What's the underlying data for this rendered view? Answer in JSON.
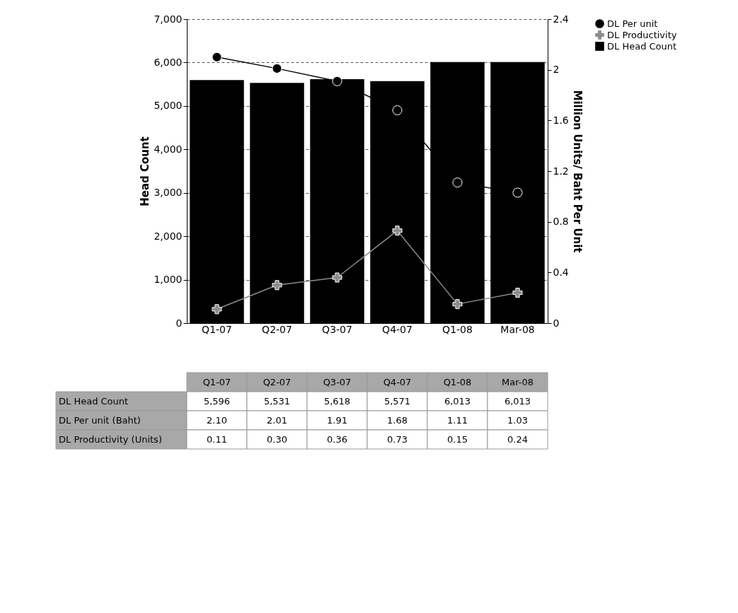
{
  "chart_data": {
    "type": "bar",
    "categories": [
      "Q1-07",
      "Q2-07",
      "Q3-07",
      "Q4-07",
      "Q1-08",
      "Mar-08"
    ],
    "ylabel": "Head Count",
    "y2label": "Million Units/ Baht Per Unit",
    "ylim": [
      0,
      7000
    ],
    "yticks": [
      0,
      {
        "value": 1000,
        "label": "1,000"
      },
      {
        "value": 2000,
        "label": "2,000"
      },
      {
        "value": 3000,
        "label": "3,000"
      },
      {
        "value": 4000,
        "label": "4,000"
      },
      {
        "value": 5000,
        "label": "5,000"
      },
      {
        "value": 6000,
        "label": "6,000"
      },
      {
        "value": 7000,
        "label": "7,000"
      }
    ],
    "y2lim": [
      0,
      2.4
    ],
    "y2ticks": [
      0,
      0.4,
      0.8,
      1.2,
      1.6,
      2,
      2.4
    ],
    "grid": "y",
    "legend": "top right",
    "annotations": [
      "DL Head Count",
      "DL Per unit (Baht)",
      "DL Productivity (Units)"
    ],
    "series": [
      {
        "name": "DL Head Count",
        "color": "#000000",
        "values": [
          5596,
          5531,
          5618,
          5571,
          6013,
          6013
        ],
        "value_labels": [
          "5,596",
          "5,531",
          "5,618",
          "5,571",
          "6,013",
          "6,013"
        ]
      },
      {
        "name": "DL Per unit",
        "type": "line",
        "axis": "y2",
        "color": "#000000",
        "marker": "circle",
        "values": [
          2.1,
          2.01,
          1.91,
          1.68,
          1.11,
          1.03
        ],
        "value_labels": [
          "2.10",
          "2.01",
          "1.91",
          "1.68",
          "1.11",
          "1.03"
        ]
      },
      {
        "name": "DL Productivity",
        "type": "line",
        "axis": "y2",
        "color": "#8c8c8c",
        "marker": "cross",
        "values": [
          0.11,
          0.3,
          0.36,
          0.73,
          0.15,
          0.24
        ],
        "value_labels": [
          "0.11",
          "0.30",
          "0.36",
          "0.73",
          "0.15",
          "0.24"
        ]
      }
    ]
  }
}
